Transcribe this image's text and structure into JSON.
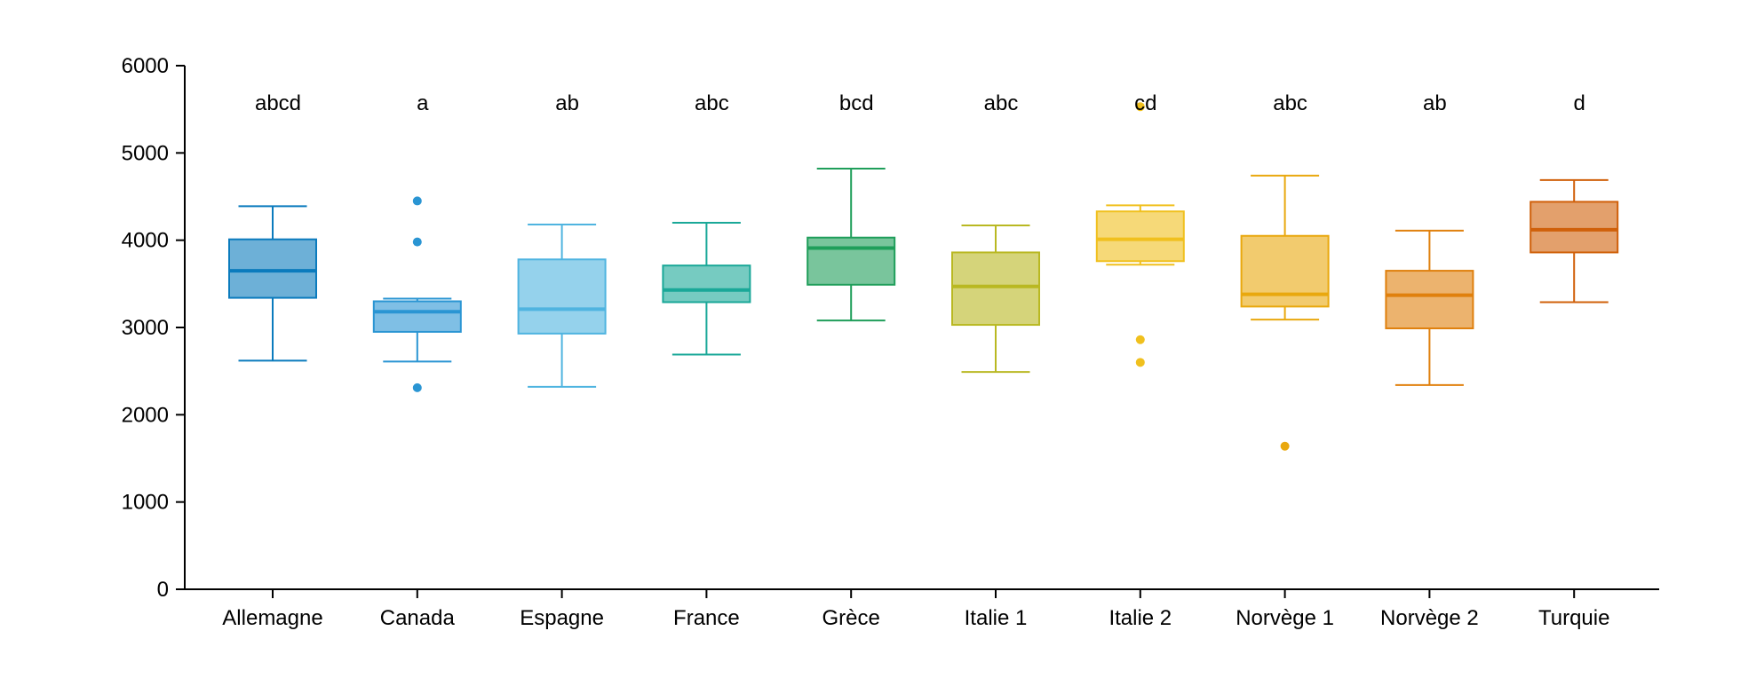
{
  "chart_data": {
    "type": "box",
    "title": "",
    "xlabel": "",
    "ylabel": "",
    "ylim": [
      0,
      6000
    ],
    "y_ticks": [
      0,
      1000,
      2000,
      3000,
      4000,
      5000,
      6000
    ],
    "grid": false,
    "legend": "none",
    "categories": [
      "Allemagne",
      "Canada",
      "Espagne",
      "France",
      "Grèce",
      "Italie 1",
      "Italie 2",
      "Norvège 1",
      "Norvège 2",
      "Turquie"
    ],
    "series": [
      {
        "category": "Allemagne",
        "letters": "abcd",
        "whisker_low": 2620,
        "q1": 3340,
        "median": 3650,
        "q3": 4010,
        "whisker_high": 4390,
        "outliers": [],
        "color": "#0b7bbd"
      },
      {
        "category": "Canada",
        "letters": "a",
        "whisker_low": 2610,
        "q1": 2950,
        "median": 3180,
        "q3": 3300,
        "whisker_high": 3330,
        "outliers": [
          4450,
          3980,
          2310
        ],
        "color": "#2a95d3"
      },
      {
        "category": "Espagne",
        "letters": "ab",
        "whisker_low": 2320,
        "q1": 2930,
        "median": 3210,
        "q3": 3780,
        "whisker_high": 4180,
        "outliers": [],
        "color": "#4fb4e0"
      },
      {
        "category": "France",
        "letters": "abc",
        "whisker_low": 2690,
        "q1": 3290,
        "median": 3430,
        "q3": 3710,
        "whisker_high": 4200,
        "outliers": [],
        "color": "#1aa898"
      },
      {
        "category": "Grèce",
        "letters": "bcd",
        "whisker_low": 3080,
        "q1": 3490,
        "median": 3910,
        "q3": 4030,
        "whisker_high": 4820,
        "outliers": [],
        "color": "#1f9e5a"
      },
      {
        "category": "Italie 1",
        "letters": "abc",
        "whisker_low": 2490,
        "q1": 3030,
        "median": 3470,
        "q3": 3860,
        "whisker_high": 4170,
        "outliers": [],
        "color": "#b9b822"
      },
      {
        "category": "Italie 2",
        "letters": "cd",
        "whisker_low": 3720,
        "q1": 3760,
        "median": 4010,
        "q3": 4330,
        "whisker_high": 4400,
        "outliers": [
          5530,
          2860,
          2600
        ],
        "color": "#f0c01e"
      },
      {
        "category": "Norvège 1",
        "letters": "abc",
        "whisker_low": 3090,
        "q1": 3240,
        "median": 3380,
        "q3": 4050,
        "whisker_high": 4740,
        "outliers": [
          1640
        ],
        "color": "#e9a80e"
      },
      {
        "category": "Norvège 2",
        "letters": "ab",
        "whisker_low": 2340,
        "q1": 2990,
        "median": 3370,
        "q3": 3650,
        "whisker_high": 4110,
        "outliers": [],
        "color": "#e0800d"
      },
      {
        "category": "Turquie",
        "letters": "d",
        "whisker_low": 3290,
        "q1": 3860,
        "median": 4120,
        "q3": 4440,
        "whisker_high": 4690,
        "outliers": [],
        "color": "#d0600a"
      }
    ]
  }
}
